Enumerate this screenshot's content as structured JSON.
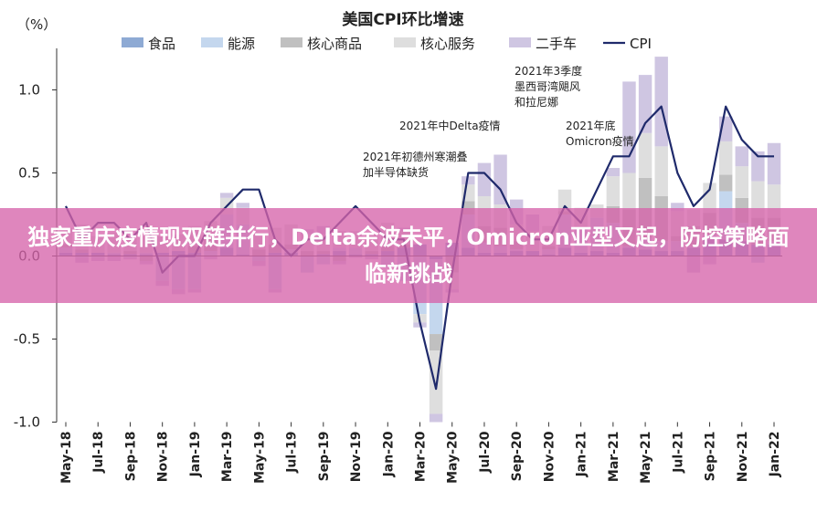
{
  "chart_data": {
    "type": "bar",
    "title": "美国CPI环比增速",
    "unit_label": "（%）",
    "ylim": [
      -1.0,
      1.25
    ],
    "yticks": [
      {
        "value": 1.0,
        "label": "1.0"
      },
      {
        "value": 0.5,
        "label": "0.5"
      },
      {
        "value": 0.0,
        "label": "0.0"
      },
      {
        "value": -0.5,
        "label": "-0.5"
      },
      {
        "value": -1.0,
        "label": "-1.0"
      }
    ],
    "months": [
      "May-18",
      "Jun-18",
      "Jul-18",
      "Aug-18",
      "Sep-18",
      "Oct-18",
      "Nov-18",
      "Dec-18",
      "Jan-19",
      "Feb-19",
      "Mar-19",
      "Apr-19",
      "May-19",
      "Jun-19",
      "Jul-19",
      "Aug-19",
      "Sep-19",
      "Oct-19",
      "Nov-19",
      "Dec-19",
      "Jan-20",
      "Feb-20",
      "Mar-20",
      "Apr-20",
      "May-20",
      "Jun-20",
      "Jul-20",
      "Aug-20",
      "Sep-20",
      "Oct-20",
      "Nov-20",
      "Dec-20",
      "Jan-21",
      "Feb-21",
      "Mar-21",
      "Apr-21",
      "May-21",
      "Jun-21",
      "Jul-21",
      "Aug-21",
      "Sep-21",
      "Oct-21",
      "Nov-21",
      "Dec-21",
      "Jan-22"
    ],
    "xtick_labels": [
      "May-18",
      "Jul-18",
      "Sep-18",
      "Nov-18",
      "Jan-19",
      "Mar-19",
      "May-19",
      "Jul-19",
      "Sep-19",
      "Nov-19",
      "Jan-20",
      "Mar-20",
      "May-20",
      "Jul-20",
      "Sep-20",
      "Nov-20",
      "Jan-21",
      "Mar-21",
      "May-21",
      "Jul-21",
      "Sep-21",
      "Nov-21",
      "Jan-22"
    ],
    "series": [
      {
        "name": "食品",
        "type": "bar",
        "color": "#8eaad4",
        "values": [
          0.02,
          0.02,
          0.02,
          0.01,
          0.01,
          0.01,
          0.02,
          0.03,
          0.02,
          0.0,
          0.05,
          0.01,
          0.0,
          0.02,
          0.02,
          0.0,
          0.01,
          0.03,
          0.01,
          0.01,
          0.03,
          0.05,
          0.07,
          -0.02,
          0.08,
          0.05,
          0.02,
          0.02,
          0.03,
          0.03,
          0.01,
          0.05,
          0.02,
          0.03,
          0.02,
          0.05,
          0.04,
          0.03,
          0.03,
          0.05,
          0.1,
          0.1,
          0.09,
          0.07,
          0.07
        ]
      },
      {
        "name": "能源",
        "type": "bar",
        "color": "#c4d7ee",
        "values": [
          0.03,
          -0.01,
          -0.01,
          0.01,
          -0.01,
          0.01,
          -0.15,
          -0.2,
          -0.2,
          0.03,
          0.2,
          0.18,
          -0.03,
          -0.2,
          0.02,
          -0.1,
          -0.05,
          0.02,
          0.04,
          0.0,
          -0.05,
          -0.15,
          -0.35,
          -0.45,
          0.0,
          0.2,
          0.06,
          0.04,
          0.01,
          0.0,
          0.03,
          0.2,
          0.15,
          0.2,
          0.18,
          0.01,
          0.07,
          0.06,
          0.06,
          0.01,
          0.03,
          0.29,
          0.11,
          -0.04,
          0.02
        ]
      },
      {
        "name": "核心商品",
        "type": "bar",
        "color": "#c0c0c0",
        "values": [
          0.02,
          0.02,
          0.0,
          0.0,
          0.02,
          -0.03,
          0.0,
          0.0,
          0.04,
          0.08,
          0.0,
          0.0,
          0.04,
          0.05,
          0.03,
          0.03,
          0.02,
          -0.03,
          0.0,
          0.02,
          0.03,
          0.02,
          0.0,
          -0.1,
          -0.1,
          0.08,
          0.1,
          0.11,
          0.05,
          0.0,
          0.02,
          0.02,
          0.0,
          0.0,
          0.1,
          0.22,
          0.36,
          0.27,
          0.03,
          0.12,
          0.13,
          0.1,
          0.15,
          0.16,
          0.14
        ]
      },
      {
        "name": "核心服务",
        "type": "bar",
        "color": "#dedede",
        "values": [
          0.1,
          0.15,
          0.1,
          0.12,
          0.08,
          0.1,
          0.1,
          0.1,
          0.12,
          0.1,
          0.1,
          0.1,
          0.1,
          0.1,
          0.12,
          0.1,
          0.1,
          0.1,
          0.1,
          0.1,
          0.14,
          0.08,
          -0.05,
          -0.38,
          -0.1,
          0.1,
          0.18,
          0.14,
          0.1,
          0.12,
          0.12,
          0.13,
          0.12,
          0.08,
          0.18,
          0.22,
          0.27,
          0.3,
          0.15,
          0.1,
          0.18,
          0.2,
          0.19,
          0.22,
          0.2
        ]
      },
      {
        "name": "二手车",
        "type": "bar",
        "color": "#cfc6e2",
        "values": [
          0.0,
          -0.03,
          -0.02,
          -0.03,
          -0.01,
          -0.02,
          -0.03,
          -0.03,
          -0.02,
          -0.02,
          0.03,
          0.03,
          -0.03,
          -0.02,
          0.0,
          0.03,
          0.05,
          -0.02,
          -0.01,
          -0.02,
          -0.02,
          0.02,
          -0.03,
          -0.05,
          -0.02,
          0.05,
          0.2,
          0.3,
          0.15,
          0.1,
          0.0,
          0.0,
          0.0,
          0.0,
          0.05,
          0.55,
          0.35,
          0.54,
          0.05,
          -0.1,
          -0.05,
          0.15,
          0.12,
          0.18,
          0.25
        ]
      },
      {
        "name": "CPI",
        "type": "line",
        "color": "#1f2a6b",
        "values": [
          0.3,
          0.1,
          0.2,
          0.2,
          0.1,
          0.2,
          -0.1,
          0.0,
          0.0,
          0.2,
          0.3,
          0.4,
          0.4,
          0.1,
          0.0,
          0.1,
          0.1,
          0.2,
          0.3,
          0.2,
          0.1,
          0.1,
          -0.4,
          -0.8,
          -0.1,
          0.5,
          0.5,
          0.4,
          0.2,
          0.1,
          0.1,
          0.3,
          0.2,
          0.4,
          0.6,
          0.6,
          0.8,
          0.9,
          0.5,
          0.3,
          0.4,
          0.9,
          0.7,
          0.6,
          0.6
        ]
      }
    ],
    "annotations": [
      {
        "index": 20,
        "lines": [
          "2021年初德州寒潮叠",
          "加半导体缺货"
        ]
      },
      {
        "index": 28,
        "lines": [
          "2021年中Delta疫情"
        ]
      },
      {
        "index": 38,
        "lines": [
          "2021年3季度",
          "墨西哥湾飓风",
          "和拉尼娜"
        ]
      },
      {
        "index": 41,
        "lines": [
          "2021年底",
          "Omicron疫情"
        ]
      }
    ],
    "legend_position": "top"
  },
  "banner": {
    "text": "独家重庆疫情现双链并行，Delta余波未平，Omicron亚型又起，防控策略面临新挑战"
  }
}
